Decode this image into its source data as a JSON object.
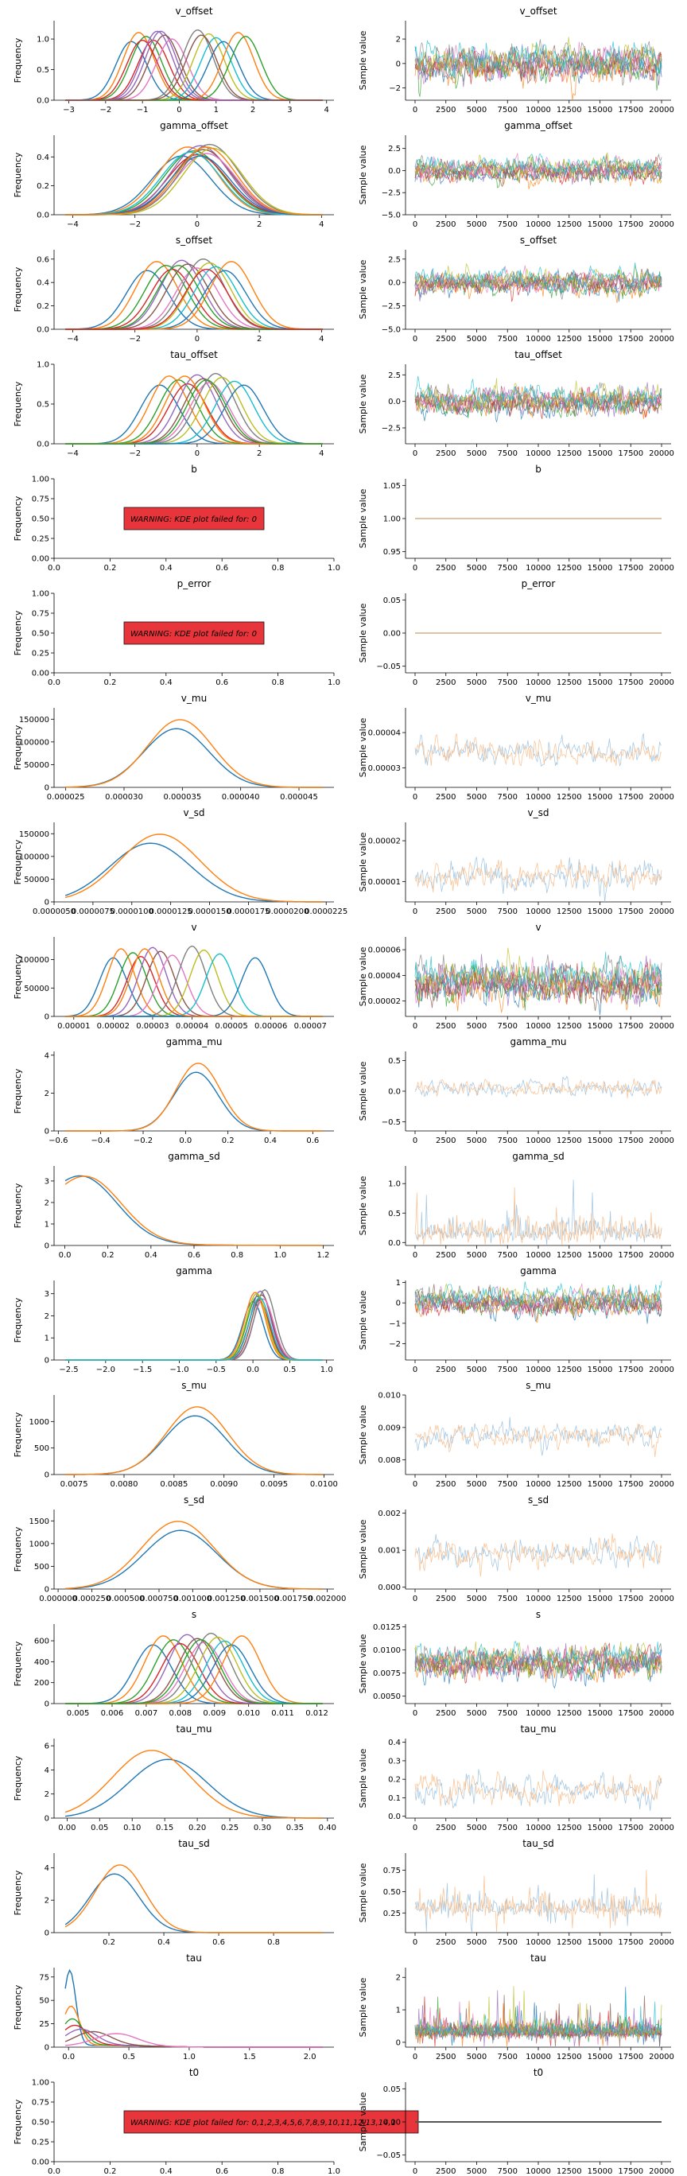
{
  "axis_labels": {
    "frequency": "Frequency",
    "sample": "Sample value"
  },
  "trace_x_ticks": [
    "0",
    "2500",
    "5000",
    "7500",
    "10000",
    "12500",
    "15000",
    "17500",
    "20000"
  ],
  "palette": [
    "#1f77b4",
    "#ff7f0e",
    "#2ca02c",
    "#d62728",
    "#9467bd",
    "#8c564b",
    "#e377c2",
    "#7f7f7f",
    "#bcbd22",
    "#17becf"
  ],
  "chart_data": [
    {
      "title": "v_offset",
      "kde": {
        "type": "line",
        "xticks": [
          "−3",
          "−2",
          "−1",
          "0",
          "1",
          "2",
          "3",
          "4"
        ],
        "xlim": [
          -3.4,
          4.2
        ],
        "yticks": [
          "0.0",
          "0.5",
          "1.0"
        ],
        "ylim": [
          0,
          1.3
        ],
        "series_centers": [
          -1.3,
          -1.1,
          -0.9,
          -0.7,
          -0.5,
          -0.4,
          -0.2,
          0.5,
          0.8,
          1.0,
          1.2,
          1.6,
          1.8,
          -1.0,
          -0.6,
          0.6
        ],
        "series_sd": 0.42
      },
      "trace": {
        "type": "line",
        "yticks": [
          "−2",
          "0",
          "2"
        ],
        "ylim": [
          -3,
          3.5
        ],
        "center": 0,
        "spread": 1.1
      }
    },
    {
      "title": "gamma_offset",
      "kde": {
        "type": "line",
        "xticks": [
          "−4",
          "−2",
          "0",
          "2",
          "4"
        ],
        "xlim": [
          -4.6,
          4.4
        ],
        "yticks": [
          "0.0",
          "0.2",
          "0.4"
        ],
        "ylim": [
          0,
          0.55
        ],
        "series_centers": [
          -0.5,
          -0.3,
          -0.1,
          0,
          0.1,
          0.2,
          0.3,
          0.4,
          0.5,
          -0.2,
          0.1,
          0.3
        ],
        "series_sd": 0.95
      },
      "trace": {
        "type": "line",
        "yticks": [
          "−5.0",
          "−2.5",
          "0.0",
          "2.5"
        ],
        "ylim": [
          -5,
          4
        ],
        "center": 0,
        "spread": 1.0
      }
    },
    {
      "title": "s_offset",
      "kde": {
        "type": "line",
        "xticks": [
          "−4",
          "−2",
          "0",
          "2",
          "4"
        ],
        "xlim": [
          -4.6,
          4.4
        ],
        "yticks": [
          "0.0",
          "0.2",
          "0.4",
          "0.6"
        ],
        "ylim": [
          0,
          0.68
        ],
        "series_centers": [
          -1.6,
          -1.3,
          -1.0,
          -0.8,
          -0.5,
          -0.3,
          0,
          0.2,
          0.4,
          0.6,
          0.9,
          1.1,
          -0.6,
          0.3
        ],
        "series_sd": 0.68
      },
      "trace": {
        "type": "line",
        "yticks": [
          "−5.0",
          "−2.5",
          "0.0",
          "2.5"
        ],
        "ylim": [
          -5,
          3.5
        ],
        "center": 0,
        "spread": 1.0
      }
    },
    {
      "title": "tau_offset",
      "kde": {
        "type": "line",
        "xticks": [
          "−4",
          "−2",
          "0",
          "2",
          "4"
        ],
        "xlim": [
          -4.6,
          4.4
        ],
        "yticks": [
          "0.0",
          "0.5",
          "1.0"
        ],
        "ylim": [
          0,
          1.0
        ],
        "series_centers": [
          -1.2,
          -0.9,
          -0.6,
          -0.3,
          0,
          0.2,
          0.4,
          0.6,
          0.8,
          1.2,
          1.5,
          -0.4,
          0.3
        ],
        "series_sd": 0.62
      },
      "trace": {
        "type": "line",
        "yticks": [
          "−2.5",
          "0.0",
          "2.5"
        ],
        "ylim": [
          -4,
          3.5
        ],
        "center": 0,
        "spread": 1.0
      }
    },
    {
      "title": "b",
      "kde": {
        "type": "warning",
        "warning": "WARNING: KDE plot failed for: 0",
        "xticks": [
          "0.0",
          "0.2",
          "0.4",
          "0.6",
          "0.8",
          "1.0"
        ],
        "xlim": [
          0,
          1
        ],
        "yticks": [
          "0.00",
          "0.25",
          "0.50",
          "0.75",
          "1.00"
        ],
        "ylim": [
          0,
          1
        ]
      },
      "trace": {
        "type": "flat",
        "yticks": [
          "0.95",
          "1.00",
          "1.05"
        ],
        "ylim": [
          0.94,
          1.06
        ],
        "value": 1.0
      }
    },
    {
      "title": "p_error",
      "kde": {
        "type": "warning",
        "warning": "WARNING: KDE plot failed for: 0",
        "xticks": [
          "0.0",
          "0.2",
          "0.4",
          "0.6",
          "0.8",
          "1.0"
        ],
        "xlim": [
          0,
          1
        ],
        "yticks": [
          "0.00",
          "0.25",
          "0.50",
          "0.75",
          "1.00"
        ],
        "ylim": [
          0,
          1
        ]
      },
      "trace": {
        "type": "flat",
        "yticks": [
          "−0.05",
          "0.00",
          "0.05"
        ],
        "ylim": [
          -0.06,
          0.06
        ],
        "value": 0
      }
    },
    {
      "title": "v_mu",
      "kde": {
        "type": "line",
        "xticks": [
          "0.000025",
          "0.000030",
          "0.000035",
          "0.000040",
          "0.000045"
        ],
        "xlim": [
          2.4e-05,
          4.8e-05
        ],
        "yticks": [
          "0",
          "50000",
          "100000",
          "150000"
        ],
        "ylim": [
          0,
          175000
        ],
        "series_centers": [
          3.45e-05,
          3.48e-05
        ],
        "series_sd": 2.8e-06,
        "two_chain": true
      },
      "trace": {
        "type": "line",
        "two_chain": true,
        "yticks": [
          "0.00003",
          "0.00004"
        ],
        "ylim": [
          2.45e-05,
          4.7e-05
        ],
        "center": 3.45e-05,
        "spread": 3.2e-06
      }
    },
    {
      "title": "v_sd",
      "kde": {
        "type": "line",
        "xticks": [
          "0.0000050",
          "0.0000075",
          "0.0000100",
          "0.0000125",
          "0.0000150",
          "0.0000175",
          "0.0000200",
          "0.0000225"
        ],
        "xlim": [
          5e-06,
          2.3e-05
        ],
        "yticks": [
          "0",
          "50000",
          "100000",
          "150000"
        ],
        "ylim": [
          0,
          175000
        ],
        "series_centers": [
          1.12e-05,
          1.18e-05
        ],
        "series_sd": 2.6e-06,
        "two_chain": true
      },
      "trace": {
        "type": "line",
        "two_chain": true,
        "yticks": [
          "0.00001",
          "0.00002"
        ],
        "ylim": [
          5e-06,
          2.45e-05
        ],
        "center": 1.15e-05,
        "spread": 3e-06
      }
    },
    {
      "title": "v",
      "kde": {
        "type": "line",
        "xticks": [
          "0.00001",
          "0.00002",
          "0.00003",
          "0.00004",
          "0.00005",
          "0.00006",
          "0.00007"
        ],
        "xlim": [
          5e-06,
          7.6e-05
        ],
        "yticks": [
          "0",
          "50000",
          "100000"
        ],
        "ylim": [
          0,
          140000
        ],
        "series_centers": [
          2e-05,
          2.2e-05,
          2.5e-05,
          2.7e-05,
          3e-05,
          3.2e-05,
          3.5e-05,
          4e-05,
          4.3e-05,
          4.7e-05,
          5.6e-05,
          2.8e-05
        ],
        "series_sd": 3.5e-06
      },
      "trace": {
        "type": "line",
        "yticks": [
          "0.00002",
          "0.00004",
          "0.00006"
        ],
        "ylim": [
          8e-06,
          7e-05
        ],
        "center": 3.4e-05,
        "spread": 1.2e-05
      }
    },
    {
      "title": "gamma_mu",
      "kde": {
        "type": "line",
        "xticks": [
          "−0.6",
          "−0.4",
          "−0.2",
          "0.0",
          "0.2",
          "0.4",
          "0.6"
        ],
        "xlim": [
          -0.62,
          0.7
        ],
        "yticks": [
          "0",
          "2",
          "4"
        ],
        "ylim": [
          0,
          4.2
        ],
        "series_centers": [
          0.05,
          0.06
        ],
        "series_sd": 0.105,
        "two_chain": true
      },
      "trace": {
        "type": "line",
        "two_chain": true,
        "yticks": [
          "−0.5",
          "0.0",
          "0.5"
        ],
        "ylim": [
          -0.65,
          0.65
        ],
        "center": 0.05,
        "spread": 0.12
      }
    },
    {
      "title": "gamma_sd",
      "kde": {
        "type": "skewed",
        "xticks": [
          "0.0",
          "0.2",
          "0.4",
          "0.6",
          "0.8",
          "1.0",
          "1.2"
        ],
        "xlim": [
          -0.05,
          1.25
        ],
        "yticks": [
          "0",
          "1",
          "2",
          "3"
        ],
        "ylim": [
          0,
          3.7
        ],
        "series_centers": [
          0.08,
          0.1
        ],
        "series_sd": 0.15,
        "two_chain": true
      },
      "trace": {
        "type": "spiky",
        "two_chain": true,
        "yticks": [
          "0.0",
          "0.5",
          "1.0"
        ],
        "ylim": [
          -0.05,
          1.3
        ],
        "center": 0.15,
        "spread": 0.18
      }
    },
    {
      "title": "gamma",
      "kde": {
        "type": "line",
        "xticks": [
          "−2.5",
          "−2.0",
          "−1.5",
          "−1.0",
          "−0.5",
          "0.0",
          "0.5",
          "1.0"
        ],
        "xlim": [
          -2.7,
          1.1
        ],
        "yticks": [
          "0",
          "1",
          "2",
          "3"
        ],
        "ylim": [
          0,
          3.6
        ],
        "series_centers": [
          0.0,
          0.03,
          0.06,
          0.08,
          0.1,
          0.12,
          0.14,
          0.16,
          0.05,
          0.09
        ],
        "series_sd": 0.14
      },
      "trace": {
        "type": "line",
        "yticks": [
          "−2",
          "−1",
          "0",
          "1"
        ],
        "ylim": [
          -2.8,
          1.1
        ],
        "center": 0.05,
        "spread": 0.5
      }
    },
    {
      "title": "s_mu",
      "kde": {
        "type": "line",
        "xticks": [
          "0.0075",
          "0.0080",
          "0.0085",
          "0.0090",
          "0.0095",
          "0.0100"
        ],
        "xlim": [
          0.0073,
          0.0101
        ],
        "yticks": [
          "0",
          "500",
          "1000"
        ],
        "ylim": [
          0,
          1500
        ],
        "series_centers": [
          0.00871,
          0.00873
        ],
        "series_sd": 0.00031,
        "two_chain": true
      },
      "trace": {
        "type": "line",
        "two_chain": true,
        "yticks": [
          "0.008",
          "0.009",
          "0.010"
        ],
        "ylim": [
          0.00755,
          0.01
        ],
        "center": 0.00872,
        "spread": 0.00035
      }
    },
    {
      "title": "s_sd",
      "kde": {
        "type": "line",
        "xticks": [
          "0.000000",
          "0.000250",
          "0.000500",
          "0.000750",
          "0.001000",
          "0.001250",
          "0.001500",
          "0.001750",
          "0.002000"
        ],
        "xlim": [
          -3e-05,
          0.00205
        ],
        "yticks": [
          "0",
          "500",
          "1000",
          "1500"
        ],
        "ylim": [
          0,
          1750
        ],
        "series_centers": [
          0.00091,
          0.00089
        ],
        "series_sd": 0.00027,
        "two_chain": true
      },
      "trace": {
        "type": "line",
        "two_chain": true,
        "yticks": [
          "0.000",
          "0.001",
          "0.002"
        ],
        "ylim": [
          -5e-05,
          0.0021
        ],
        "center": 0.0009,
        "spread": 0.00032
      }
    },
    {
      "title": "s",
      "kde": {
        "type": "line",
        "xticks": [
          "0.005",
          "0.006",
          "0.007",
          "0.008",
          "0.009",
          "0.010",
          "0.011",
          "0.012"
        ],
        "xlim": [
          0.0043,
          0.0125
        ],
        "yticks": [
          "0",
          "200",
          "400",
          "600"
        ],
        "ylim": [
          0,
          760
        ],
        "series_centers": [
          0.0072,
          0.0075,
          0.0078,
          0.008,
          0.0082,
          0.0085,
          0.0087,
          0.0089,
          0.0091,
          0.0093,
          0.0095,
          0.0098,
          0.0086
        ],
        "series_sd": 0.00055
      },
      "trace": {
        "type": "line",
        "yticks": [
          "0.0050",
          "0.0075",
          "0.0100",
          "0.0125"
        ],
        "ylim": [
          0.0042,
          0.0128
        ],
        "center": 0.0087,
        "spread": 0.0013
      }
    },
    {
      "title": "tau_mu",
      "kde": {
        "type": "line",
        "xticks": [
          "0.00",
          "0.05",
          "0.10",
          "0.15",
          "0.20",
          "0.25",
          "0.30",
          "0.35",
          "0.40"
        ],
        "xlim": [
          -0.02,
          0.41
        ],
        "yticks": [
          "0",
          "2",
          "4",
          "6"
        ],
        "ylim": [
          0,
          6.6
        ],
        "series_centers": [
          0.155,
          0.13
        ],
        "series_sd": 0.06,
        "two_chain": true
      },
      "trace": {
        "type": "line",
        "two_chain": true,
        "yticks": [
          "0.0",
          "0.1",
          "0.2",
          "0.3",
          "0.4"
        ],
        "ylim": [
          -0.01,
          0.42
        ],
        "center": 0.14,
        "spread": 0.07
      }
    },
    {
      "title": "tau_sd",
      "kde": {
        "type": "line",
        "xticks": [
          "0.2",
          "0.4",
          "0.6",
          "0.8"
        ],
        "xlim": [
          0.0,
          1.02
        ],
        "yticks": [
          "0",
          "2",
          "4"
        ],
        "ylim": [
          0,
          4.9
        ],
        "series_centers": [
          0.22,
          0.24
        ],
        "series_sd": 0.09,
        "two_chain": true
      },
      "trace": {
        "type": "spiky",
        "two_chain": true,
        "yticks": [
          "0.25",
          "0.50",
          "0.75"
        ],
        "ylim": [
          0.02,
          0.95
        ],
        "center": 0.3,
        "spread": 0.12
      }
    },
    {
      "title": "tau",
      "kde": {
        "type": "spike",
        "xticks": [
          "0.0",
          "0.5",
          "1.0",
          "1.5",
          "2.0"
        ],
        "xlim": [
          -0.12,
          2.2
        ],
        "yticks": [
          "0",
          "25",
          "50",
          "75"
        ],
        "ylim": [
          0,
          85
        ],
        "series_centers": [
          0.01,
          0.02,
          0.03,
          0.05,
          0.1,
          0.2,
          0.4
        ],
        "series_sd": 0.05
      },
      "trace": {
        "type": "spiky",
        "yticks": [
          "0",
          "1",
          "2"
        ],
        "ylim": [
          -0.15,
          2.3
        ],
        "center": 0.3,
        "spread": 0.22
      }
    },
    {
      "title": "t0",
      "kde": {
        "type": "warning",
        "warning": "WARNING: KDE plot failed for: 0,1,2,3,4,5,6,7,8,9,10,11,12,13,14,1",
        "xticks": [
          "0.0",
          "0.2",
          "0.4",
          "0.6",
          "0.8",
          "1.0"
        ],
        "xlim": [
          0,
          1
        ],
        "yticks": [
          "0.00",
          "0.25",
          "0.50",
          "0.75",
          "1.00"
        ],
        "ylim": [
          0,
          1
        ]
      },
      "trace": {
        "type": "flat",
        "yticks": [
          "−0.05",
          "0.00",
          "0.05"
        ],
        "ylim": [
          -0.06,
          0.06
        ],
        "value": 0
      }
    }
  ]
}
